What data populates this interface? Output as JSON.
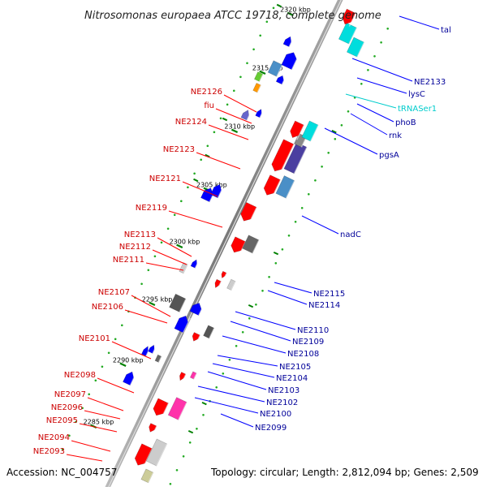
{
  "title": "Nitrosomonas europaea ATCC 19718, complete genome",
  "accession": "Accession: NC_004757",
  "summary": "Topology: circular; Length: 2,812,094 bp; Genes: 2,509",
  "colors": {
    "forward": "#ff0000",
    "reverse": "#0000ff",
    "trna": "#00cccc",
    "forward_label": "#cc0000",
    "reverse_label": "#000099",
    "trna_label": "#00cccc",
    "backbone": "#888888",
    "tick": "#008000"
  },
  "scale_ticks": [
    "2285 kbp",
    "2290 kbp",
    "2295 kbp",
    "2300 kbp",
    "2305 kbp",
    "2310 kbp",
    "2315 kbp",
    "2320 kbp"
  ],
  "left_labels": [
    "NE2126",
    "fiu",
    "NE2124",
    "NE2123",
    "NE2121",
    "NE2119",
    "NE2113",
    "NE2112",
    "NE2111",
    "NE2107",
    "NE2106",
    "NE2101",
    "NE2098",
    "NE2097",
    "NE2096",
    "NE2095",
    "NE2094",
    "NE2093"
  ],
  "right_labels": [
    "tal",
    "NE2133",
    "lysC",
    "tRNASer1",
    "phoB",
    "rnk",
    "pgsA",
    "nadC",
    "NE2115",
    "NE2114",
    "NE2110",
    "NE2109",
    "NE2108",
    "NE2105",
    "NE2104",
    "NE2103",
    "NE2102",
    "NE2100",
    "NE2099"
  ]
}
